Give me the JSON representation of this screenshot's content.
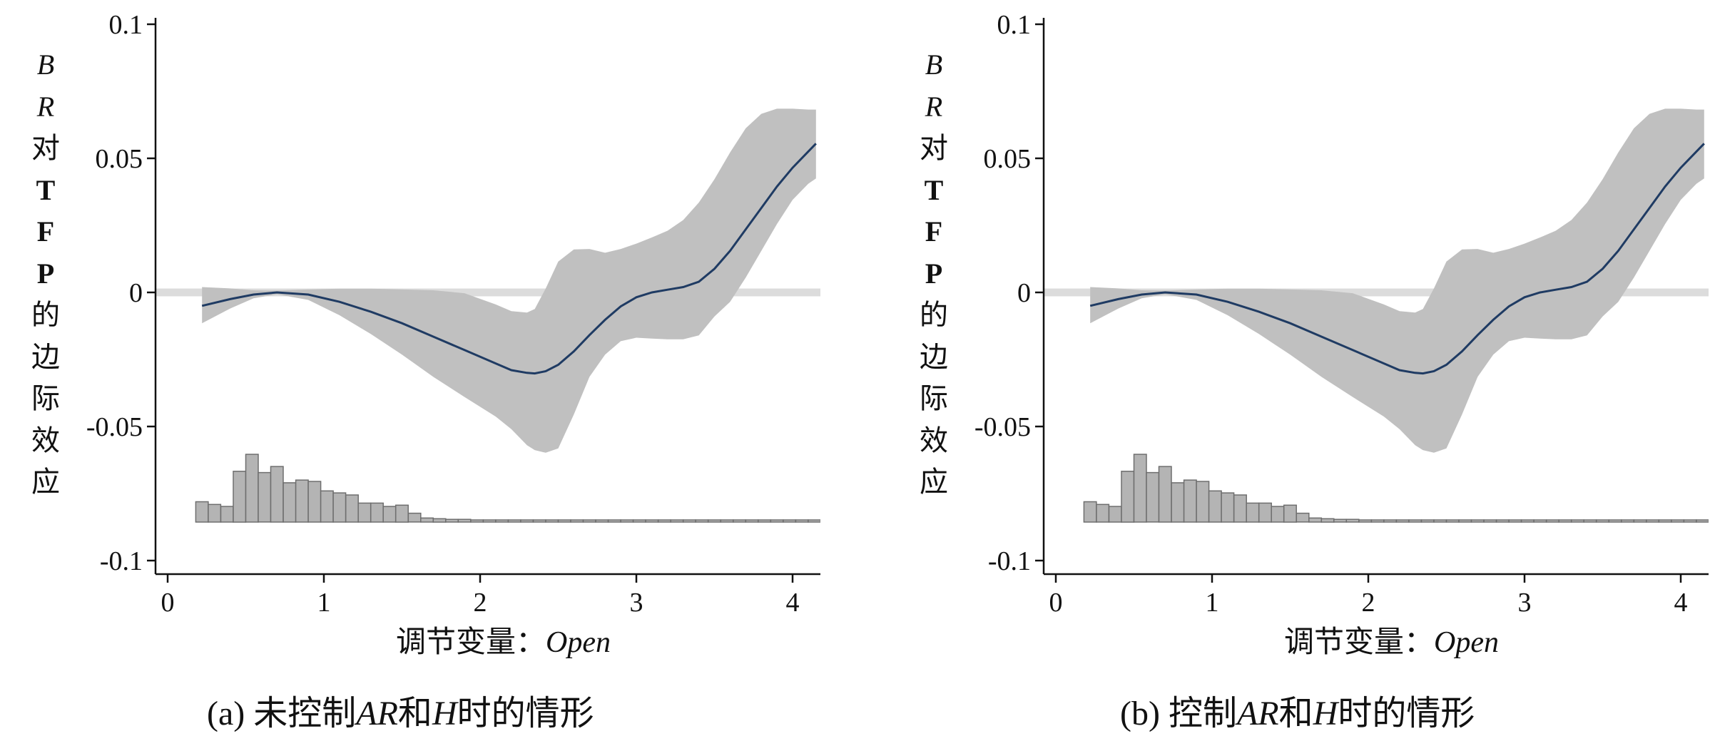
{
  "panels": [
    {
      "id": "a",
      "caption": {
        "prefix": "(a) 未控制",
        "ar": "AR",
        "and": "和",
        "h": "H",
        "suffix": "时的情形"
      },
      "ylabel": [
        "B",
        "R",
        "对",
        "T",
        "F",
        "P",
        "的",
        "边",
        "际",
        "效",
        "应"
      ],
      "xlabel": {
        "prefix": "调节变量：",
        "var": "Open"
      }
    },
    {
      "id": "b",
      "caption": {
        "prefix": "(b) 控制",
        "ar": "AR",
        "and": "和",
        "h": "H",
        "suffix": "时的情形"
      },
      "ylabel": [
        "B",
        "R",
        "对",
        "T",
        "F",
        "P",
        "的",
        "边",
        "际",
        "效",
        "应"
      ],
      "xlabel": {
        "prefix": "调节变量：",
        "var": "Open"
      }
    }
  ],
  "colors": {
    "line": "#1f3b63",
    "band": "#c0c0c0",
    "zero_line": "#dcdcdc",
    "bars": "#b4b4b4",
    "bar_edge": "#6e6e6e"
  },
  "chart_data": [
    {
      "type": "line",
      "title": "",
      "xlabel": "调节变量：Open",
      "ylabel": "BR对TFP的边际效应",
      "xlim": [
        -0.05,
        4.15
      ],
      "ylim": [
        -0.105,
        0.105
      ],
      "xticks": [
        0,
        1,
        2,
        3,
        4
      ],
      "xtick_labels": [
        "0",
        "1",
        "2",
        "3",
        "4"
      ],
      "yticks": [
        0.1,
        0.05,
        0,
        -0.05,
        -0.1
      ],
      "ytick_labels": [
        "0.1",
        "0.05",
        "0",
        "-0.05",
        "-0.1"
      ],
      "reference_line_y": 0,
      "series": [
        {
          "kind": "estimate",
          "x": [
            0.22,
            0.4,
            0.55,
            0.7,
            0.9,
            1.1,
            1.3,
            1.5,
            1.7,
            1.9,
            2.1,
            2.2,
            2.3,
            2.35,
            2.42,
            2.5,
            2.6,
            2.7,
            2.8,
            2.9,
            3.0,
            3.1,
            3.2,
            3.3,
            3.4,
            3.5,
            3.6,
            3.7,
            3.8,
            3.9,
            4.0,
            4.1,
            4.15
          ],
          "y": [
            -0.005,
            -0.0025,
            -0.0008,
            0.0,
            -0.0008,
            -0.0035,
            -0.0072,
            -0.0115,
            -0.0165,
            -0.0215,
            -0.0265,
            -0.029,
            -0.03,
            -0.0302,
            -0.0294,
            -0.027,
            -0.022,
            -0.0159,
            -0.0102,
            -0.0052,
            -0.0018,
            0.0,
            0.001,
            0.002,
            0.004,
            0.0088,
            0.0155,
            0.0235,
            0.0315,
            0.0395,
            0.0465,
            0.0525,
            0.0555
          ]
        },
        {
          "kind": "ci_upper",
          "x": [
            0.22,
            0.4,
            0.55,
            0.7,
            0.9,
            1.1,
            1.3,
            1.5,
            1.7,
            1.9,
            2.1,
            2.2,
            2.3,
            2.35,
            2.42,
            2.5,
            2.6,
            2.7,
            2.8,
            2.9,
            3.0,
            3.1,
            3.2,
            3.3,
            3.4,
            3.5,
            3.6,
            3.7,
            3.8,
            3.9,
            4.0,
            4.1,
            4.15
          ],
          "y": [
            0.002,
            0.0015,
            0.0008,
            0.0007,
            0.0011,
            0.0014,
            0.0014,
            0.0011,
            0.0008,
            -0.0003,
            -0.0045,
            -0.007,
            -0.0075,
            -0.0062,
            0.0015,
            0.0115,
            0.016,
            0.0162,
            0.0148,
            0.0162,
            0.0182,
            0.0205,
            0.023,
            0.027,
            0.0335,
            0.0422,
            0.0522,
            0.0612,
            0.0666,
            0.0685,
            0.0685,
            0.0682,
            0.0682
          ]
        },
        {
          "kind": "ci_lower",
          "x": [
            0.22,
            0.4,
            0.55,
            0.7,
            0.9,
            1.1,
            1.3,
            1.5,
            1.7,
            1.9,
            2.1,
            2.2,
            2.3,
            2.35,
            2.42,
            2.5,
            2.6,
            2.7,
            2.8,
            2.9,
            3.0,
            3.1,
            3.2,
            3.3,
            3.4,
            3.5,
            3.6,
            3.7,
            3.8,
            3.9,
            4.0,
            4.1,
            4.15
          ],
          "y": [
            -0.0115,
            -0.006,
            -0.0022,
            -0.0007,
            -0.0028,
            -0.0085,
            -0.0155,
            -0.0232,
            -0.0315,
            -0.039,
            -0.0463,
            -0.051,
            -0.057,
            -0.0588,
            -0.0598,
            -0.0582,
            -0.0455,
            -0.0315,
            -0.0232,
            -0.0182,
            -0.0169,
            -0.0172,
            -0.0175,
            -0.0175,
            -0.016,
            -0.009,
            -0.0035,
            0.0055,
            0.0155,
            0.0255,
            0.0345,
            0.0405,
            0.0425
          ]
        }
      ],
      "histogram": {
        "bin_width": 0.08,
        "bin_left_edges": [
          0.18,
          0.26,
          0.34,
          0.42,
          0.5,
          0.58,
          0.66,
          0.74,
          0.82,
          0.9,
          0.98,
          1.06,
          1.14,
          1.22,
          1.3,
          1.38,
          1.46,
          1.54,
          1.62,
          1.7,
          1.78,
          1.86,
          1.94,
          2.02,
          2.1,
          2.18,
          2.26,
          2.34,
          2.42,
          2.5,
          2.58,
          2.66,
          2.74,
          2.82,
          2.9,
          2.98,
          3.06,
          3.14,
          3.22,
          3.3,
          3.38,
          3.46,
          3.54,
          3.62,
          3.7,
          3.78,
          3.86,
          3.94,
          4.02,
          4.1
        ],
        "relative_heights": [
          0.3,
          0.26,
          0.23,
          0.75,
          1.0,
          0.73,
          0.82,
          0.58,
          0.62,
          0.6,
          0.46,
          0.43,
          0.4,
          0.28,
          0.28,
          0.23,
          0.25,
          0.13,
          0.06,
          0.05,
          0.04,
          0.04,
          0.02,
          0.01,
          0.01,
          0.01,
          0.01,
          0.01,
          0.01,
          0.01,
          0.01,
          0.01,
          0.01,
          0.01,
          0.02,
          0.01,
          0.02,
          0.01,
          0.01,
          0.01,
          0.01,
          0.01,
          0.01,
          0.02,
          0.01,
          0.01,
          0.01,
          0.01,
          0.01,
          0.01
        ]
      }
    }
  ]
}
